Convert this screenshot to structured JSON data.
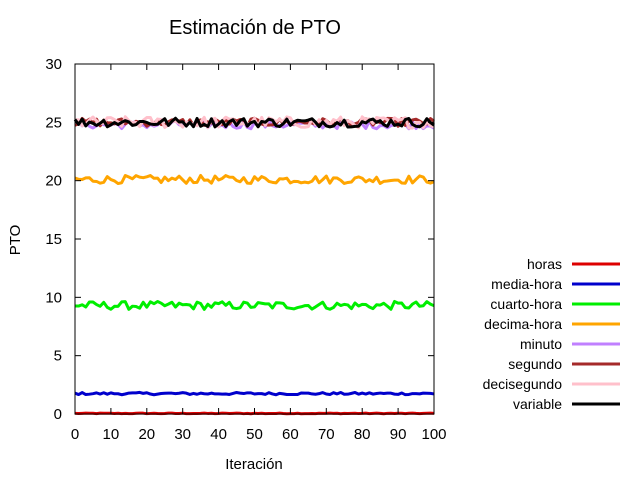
{
  "chart_data": {
    "type": "line",
    "title": "Estimación de PTO",
    "xlabel": "Iteración",
    "ylabel": "PTO",
    "xlim": [
      0,
      100
    ],
    "ylim": [
      0,
      30
    ],
    "x_ticks": [
      0,
      10,
      20,
      30,
      40,
      50,
      60,
      70,
      80,
      90,
      100
    ],
    "y_ticks": [
      0,
      5,
      10,
      15,
      20,
      25,
      30
    ],
    "grid": false,
    "legend_position": "right",
    "series": [
      {
        "name": "horas",
        "color": "#dd0000",
        "mean": 0.05,
        "noise": 0.03
      },
      {
        "name": "media-hora",
        "color": "#0000cc",
        "mean": 1.75,
        "noise": 0.1
      },
      {
        "name": "cuarto-hora",
        "color": "#00ee00",
        "mean": 9.3,
        "noise": 0.35
      },
      {
        "name": "decima-hora",
        "color": "#ffa500",
        "mean": 20.1,
        "noise": 0.35
      },
      {
        "name": "minuto",
        "color": "#c080ff",
        "mean": 24.8,
        "noise": 0.35
      },
      {
        "name": "segundo",
        "color": "#a52a2a",
        "mean": 25.0,
        "noise": 0.35
      },
      {
        "name": "decisegundo",
        "color": "#ffc0cb",
        "mean": 25.0,
        "noise": 0.5
      },
      {
        "name": "variable",
        "color": "#000000",
        "mean": 25.0,
        "noise": 0.4
      }
    ]
  }
}
